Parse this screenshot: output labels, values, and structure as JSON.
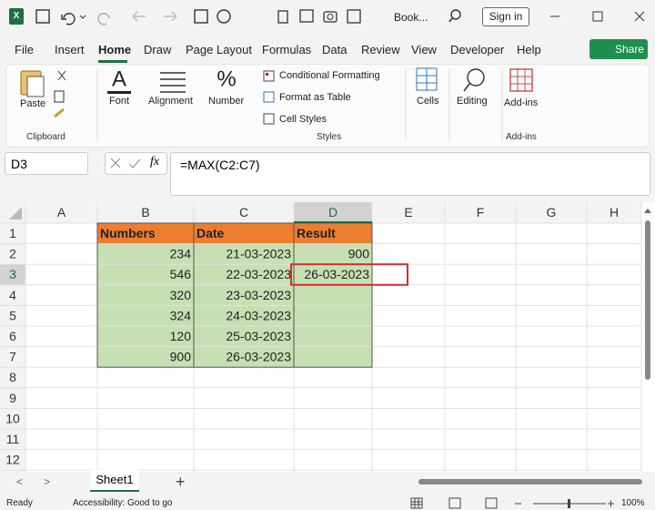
{
  "title_bar": {
    "document": "Book...",
    "sign_in": "Sign in"
  },
  "menu": {
    "tabs": [
      "File",
      "Insert",
      "Home",
      "Draw",
      "Page Layout",
      "Formulas",
      "Data",
      "Review",
      "View",
      "Developer",
      "Help"
    ],
    "share": "Share"
  },
  "ribbon": {
    "paste": "Paste",
    "clipboard": "Clipboard",
    "font": "Font",
    "alignment": "Alignment",
    "number": "Number",
    "conditional_formatting": "Conditional Formatting",
    "format_as_table": "Format as Table",
    "cell_styles": "Cell Styles",
    "styles": "Styles",
    "cells": "Cells",
    "editing": "Editing",
    "add_ins_button": "Add-ins",
    "add_ins_group": "Add-ins"
  },
  "formula_bar": {
    "name_box": "D3",
    "fx": "fx",
    "formula": "=MAX(C2:C7)"
  },
  "sheet": {
    "columns": [
      "A",
      "B",
      "C",
      "D",
      "E",
      "F",
      "G",
      "H"
    ],
    "row_numbers": [
      1,
      2,
      3,
      4,
      5,
      6,
      7,
      8,
      9,
      10,
      11,
      12
    ],
    "table": {
      "header": [
        "Numbers",
        "Date",
        "Result"
      ],
      "rows": [
        [
          234,
          "21-03-2023",
          900
        ],
        [
          546,
          "22-03-2023",
          "26-03-2023"
        ],
        [
          320,
          "23-03-2023"
        ],
        [
          324,
          "24-03-2023"
        ],
        [
          120,
          "25-03-2023"
        ],
        [
          900,
          "26-03-2023"
        ]
      ]
    }
  },
  "sheet_tab": "Sheet1",
  "status": {
    "ready": "Ready",
    "accessibility": "Accessibility: Good to go",
    "zoom": "100%"
  }
}
